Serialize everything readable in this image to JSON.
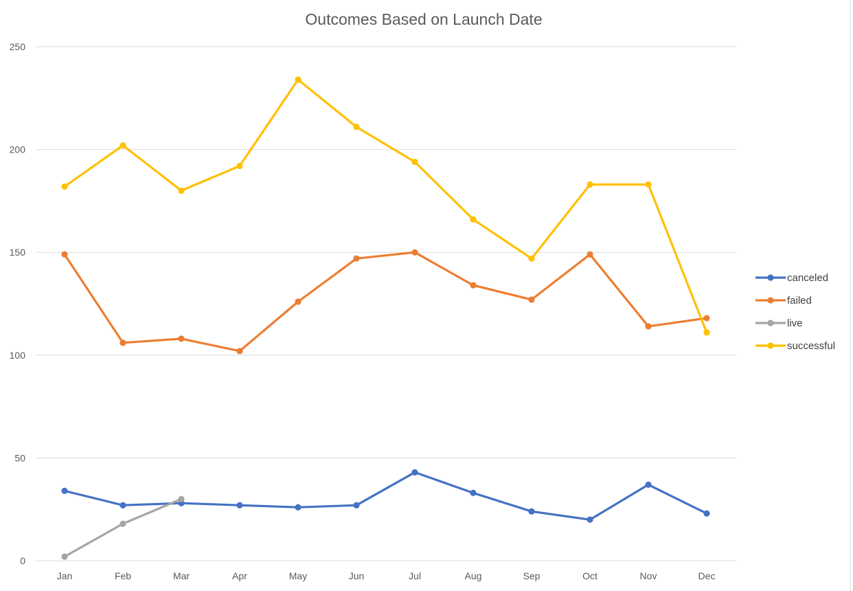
{
  "chart_data": {
    "type": "line",
    "title": "Outcomes Based on Launch Date",
    "xlabel": "",
    "ylabel": "",
    "categories": [
      "Jan",
      "Feb",
      "Mar",
      "Apr",
      "May",
      "Jun",
      "Jul",
      "Aug",
      "Sep",
      "Oct",
      "Nov",
      "Dec"
    ],
    "ylim": [
      0,
      250
    ],
    "yticks": [
      "0",
      "50",
      "100",
      "150",
      "200",
      "250"
    ],
    "grid": true,
    "legend": "right",
    "series": [
      {
        "name": "canceled",
        "color": "#4472c4",
        "values": [
          34,
          27,
          28,
          27,
          26,
          27,
          43,
          33,
          24,
          20,
          37,
          23
        ]
      },
      {
        "name": "failed",
        "color": "#ed7d31",
        "values": [
          149,
          106,
          108,
          102,
          126,
          147,
          150,
          134,
          127,
          149,
          114,
          118
        ]
      },
      {
        "name": "live",
        "color": "#a5a5a5",
        "values": [
          2,
          18,
          30,
          null,
          null,
          null,
          null,
          null,
          null,
          null,
          null,
          null
        ]
      },
      {
        "name": "successful",
        "color": "#ffc000",
        "values": [
          182,
          202,
          180,
          192,
          234,
          211,
          194,
          166,
          147,
          183,
          183,
          111
        ]
      }
    ]
  }
}
